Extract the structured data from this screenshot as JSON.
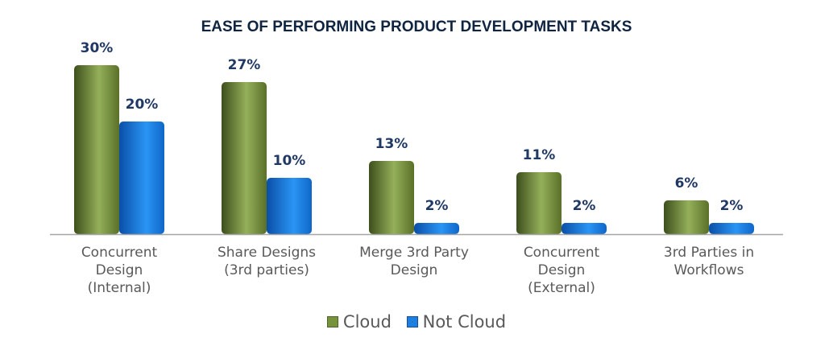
{
  "chart_data": {
    "type": "bar",
    "title": "EASE OF PERFORMING PRODUCT DEVELOPMENT TASKS",
    "xlabel": "",
    "ylabel": "",
    "ylim": [
      0,
      30
    ],
    "grid": false,
    "legend_position": "bottom",
    "categories": [
      "Concurrent\nDesign\n(Internal)",
      "Share Designs\n(3rd parties)",
      "Merge 3rd Party\nDesign",
      "Concurrent\nDesign\n(External)",
      "3rd Parties in\nWorkflows"
    ],
    "series": [
      {
        "name": "Cloud",
        "color": "#77933c",
        "values": [
          30,
          27,
          13,
          11,
          6
        ],
        "labels": [
          "30%",
          "27%",
          "13%",
          "11%",
          "6%"
        ]
      },
      {
        "name": "Not Cloud",
        "color": "#1f7fe0",
        "values": [
          20,
          10,
          2,
          2,
          2
        ],
        "labels": [
          "20%",
          "10%",
          "2%",
          "2%",
          "2%"
        ]
      }
    ]
  }
}
